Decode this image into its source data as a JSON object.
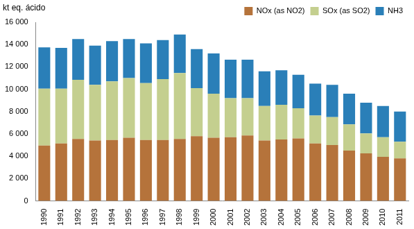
{
  "chart_data": {
    "type": "bar",
    "stacked": true,
    "grid": false,
    "legend": "top-right",
    "y_label": "kt eq. ácido",
    "categories": [
      "1990",
      "1991",
      "1992",
      "1993",
      "1994",
      "1995",
      "1996",
      "1997",
      "1998",
      "1999",
      "2000",
      "2001",
      "2002",
      "2003",
      "2004",
      "2005",
      "2006",
      "2007",
      "2008",
      "2009",
      "2010",
      "2011"
    ],
    "series": [
      {
        "name": "NOx (as NO2)",
        "color": "#b5733b",
        "values": [
          4950,
          5150,
          5550,
          5400,
          5450,
          5650,
          5450,
          5450,
          5550,
          5800,
          5650,
          5700,
          5850,
          5400,
          5500,
          5600,
          5150,
          5000,
          4500,
          4250,
          3950,
          3800
        ]
      },
      {
        "name": "SOx (as SO2)",
        "color": "#c4cf8f",
        "values": [
          5100,
          4900,
          5300,
          5000,
          5250,
          5350,
          5100,
          5450,
          5900,
          4300,
          3950,
          3500,
          3350,
          3100,
          3100,
          2700,
          2500,
          2500,
          2350,
          1800,
          1750,
          1500
        ]
      },
      {
        "name": "NH3",
        "color": "#2a7fb8",
        "values": [
          3700,
          3650,
          3650,
          3500,
          3600,
          3500,
          3550,
          3500,
          3450,
          3500,
          3600,
          3450,
          3450,
          3100,
          3100,
          3000,
          2850,
          2900,
          2750,
          2750,
          2800,
          2700
        ]
      }
    ],
    "ylim": [
      0,
      16000
    ],
    "yticks": [
      0,
      {
        "value": 2000,
        "label": "2 000"
      },
      {
        "value": 4000,
        "label": "4 000"
      },
      {
        "value": 6000,
        "label": "6 000"
      },
      {
        "value": 8000,
        "label": "8 000"
      },
      {
        "value": 10000,
        "label": "10 000"
      },
      {
        "value": 12000,
        "label": "12 000"
      },
      {
        "value": 14000,
        "label": "14 000"
      },
      {
        "value": 16000,
        "label": "16 000"
      }
    ]
  }
}
